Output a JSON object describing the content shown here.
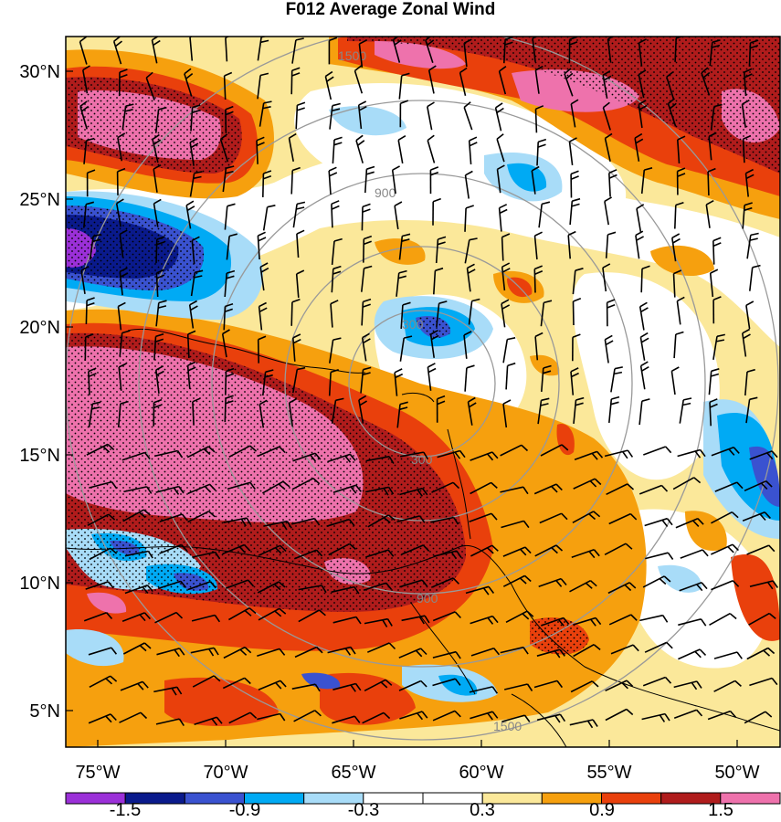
{
  "title": "F012 Average Zonal Wind",
  "axes": {
    "lon_ticks": [
      "75°W",
      "70°W",
      "65°W",
      "60°W",
      "55°W",
      "50°W"
    ],
    "lat_ticks": [
      "30°N",
      "25°N",
      "20°N",
      "15°N",
      "10°N",
      "5°N"
    ]
  },
  "colorbar": {
    "colors": [
      "#9b30d8",
      "#0a1a8c",
      "#3a52d0",
      "#00aaf4",
      "#a8dcf8",
      "#ffffff",
      "#ffffff",
      "#fbe89a",
      "#f6a00e",
      "#e9400c",
      "#b01c1c",
      "#ee72ac"
    ],
    "labels": [
      "-1.5",
      "-0.9",
      "-0.3",
      "0.3",
      "0.9",
      "1.5"
    ]
  },
  "range_rings": {
    "labels": [
      "300",
      "900",
      "1500"
    ]
  },
  "colors": {
    "ring": "#999999",
    "coast": "#000000",
    "barb": "#000000"
  }
}
